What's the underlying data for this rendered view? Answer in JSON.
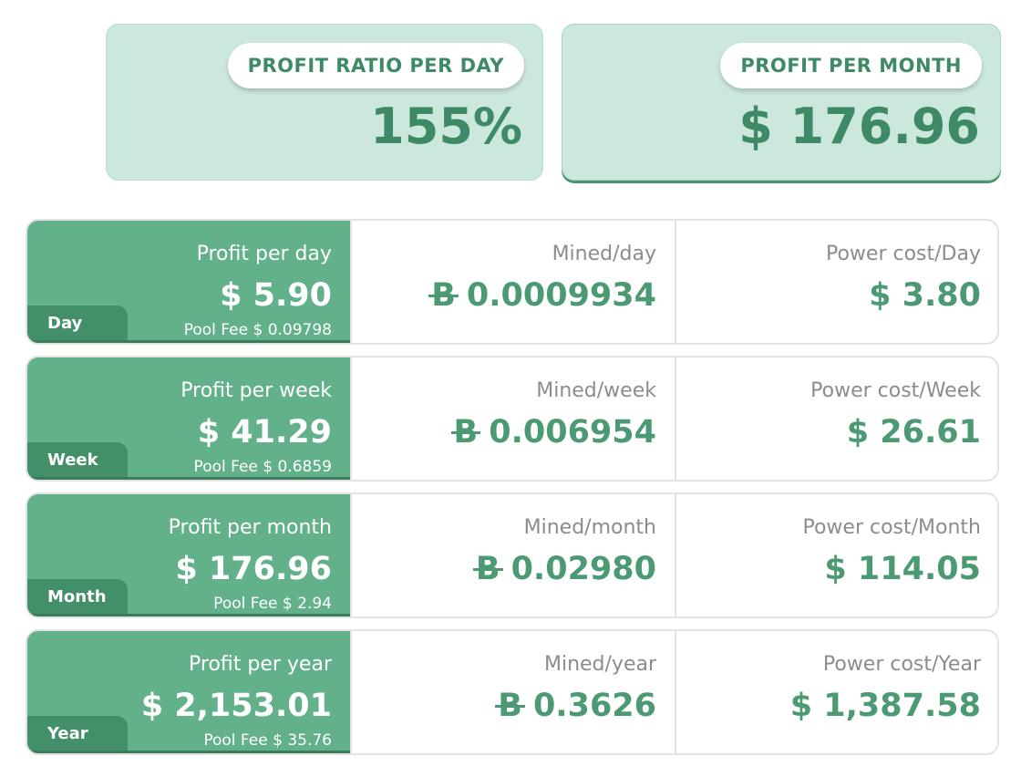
{
  "summary": {
    "profit_ratio": {
      "label": "PROFIT RATIO PER DAY",
      "value": "155%"
    },
    "profit_month": {
      "label": "PROFIT PER MONTH",
      "value": "$ 176.96"
    }
  },
  "rows": [
    {
      "period": "Day",
      "profit_label": "Profit per day",
      "profit_value": "$ 5.90",
      "pool_fee": "Pool Fee $ 0.09798",
      "mined_label": "Mined/day",
      "mined_symbol": "B",
      "mined_value": "0.0009934",
      "power_label": "Power cost/Day",
      "power_value": "$ 3.80"
    },
    {
      "period": "Week",
      "profit_label": "Profit per week",
      "profit_value": "$ 41.29",
      "pool_fee": "Pool Fee $ 0.6859",
      "mined_label": "Mined/week",
      "mined_symbol": "B",
      "mined_value": "0.006954",
      "power_label": "Power cost/Week",
      "power_value": "$ 26.61"
    },
    {
      "period": "Month",
      "profit_label": "Profit per month",
      "profit_value": "$ 176.96",
      "pool_fee": "Pool Fee $ 2.94",
      "mined_label": "Mined/month",
      "mined_symbol": "B",
      "mined_value": "0.02980",
      "power_label": "Power cost/Month",
      "power_value": "$ 114.05"
    },
    {
      "period": "Year",
      "profit_label": "Profit per year",
      "profit_value": "$ 2,153.01",
      "pool_fee": "Pool Fee $ 35.76",
      "mined_label": "Mined/year",
      "mined_symbol": "B",
      "mined_value": "0.3626",
      "power_label": "Power cost/Year",
      "power_value": "$ 1,387.58"
    }
  ],
  "colors": {
    "accent": "#62b18a",
    "accent_dark": "#438f6a",
    "summary_bg": "#cce7dc",
    "value_green": "#4c9a74",
    "label_gray": "#8c8c8c"
  }
}
